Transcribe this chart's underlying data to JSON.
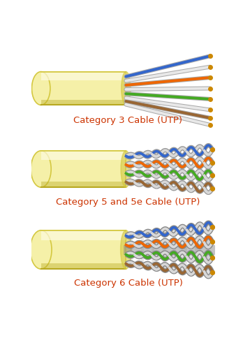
{
  "bg_color": "#ffffff",
  "cable_jacket_color": "#f5f0a8",
  "cable_jacket_highlight": "#fdfae0",
  "cable_jacket_shadow": "#d4c840",
  "cable_jacket_dark": "#b8a820",
  "labels": [
    "Category 3 Cable (UTP)",
    "Category 5 and 5e Cable (UTP)",
    "Category 6 Cable (UTP)"
  ],
  "label_color": "#cc3300",
  "label_fontsize": 9.5,
  "wire_colors": {
    "blue": "#3366cc",
    "orange": "#ee6600",
    "green": "#44aa22",
    "brown": "#996633",
    "white": "#e8e8e8",
    "gray": "#888888",
    "gray_dark": "#555555",
    "yellow_tip": "#cc8800",
    "black": "#222222"
  },
  "figsize": [
    3.58,
    4.85
  ],
  "dpi": 100
}
